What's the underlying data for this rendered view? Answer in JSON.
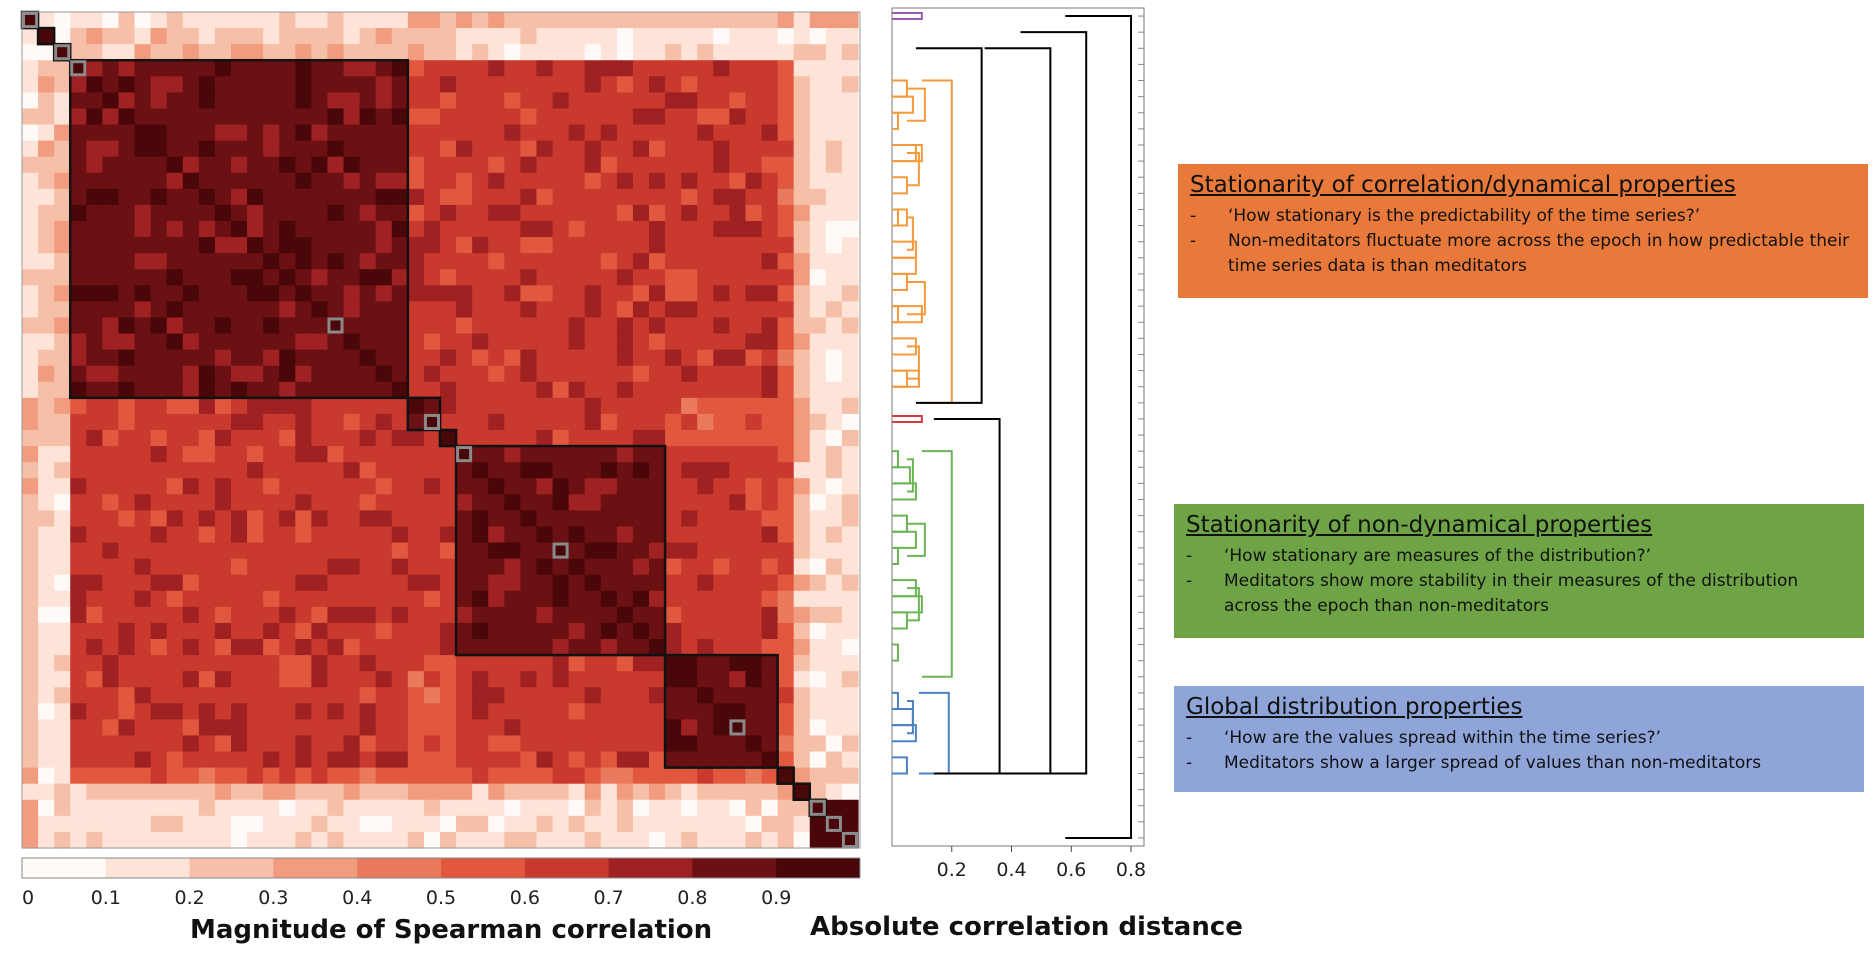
{
  "chart_data": [
    {
      "type": "heatmap",
      "title": "",
      "n_features": 52,
      "colorbar": {
        "label": "Magnitude of Spearman correlation",
        "ticks": [
          "0",
          "0.1",
          "0.2",
          "0.3",
          "0.4",
          "0.5",
          "0.6",
          "0.7",
          "0.8",
          "0.9"
        ],
        "range": [
          0,
          1
        ],
        "colors": [
          "#fffaf7",
          "#fde3d8",
          "#f6c0a8",
          "#f19c7e",
          "#e97a5d",
          "#e2583f",
          "#c9392e",
          "#9f2122",
          "#6b1013",
          "#4a0709"
        ]
      },
      "clusters": [
        {
          "start": 0,
          "end": 0
        },
        {
          "start": 1,
          "end": 1
        },
        {
          "start": 2,
          "end": 2
        },
        {
          "start": 3,
          "end": 23
        },
        {
          "start": 24,
          "end": 25
        },
        {
          "start": 26,
          "end": 26
        },
        {
          "start": 27,
          "end": 39
        },
        {
          "start": 40,
          "end": 46
        },
        {
          "start": 47,
          "end": 47
        },
        {
          "start": 48,
          "end": 48
        },
        {
          "start": 49,
          "end": 49
        }
      ],
      "block_levels": [
        [
          9,
          1,
          1,
          1,
          3,
          2,
          2,
          2,
          3,
          1,
          3
        ],
        [
          1,
          9,
          1,
          2,
          2,
          2,
          1,
          1,
          1,
          1,
          1
        ],
        [
          1,
          1,
          9,
          2,
          2,
          2,
          1,
          1,
          1,
          1,
          1
        ],
        [
          1,
          2,
          2,
          8,
          6,
          6,
          6,
          6,
          5,
          2,
          1
        ],
        [
          3,
          2,
          2,
          6,
          8,
          6,
          6,
          5,
          5,
          3,
          1
        ],
        [
          2,
          2,
          2,
          6,
          6,
          9,
          6,
          5,
          5,
          2,
          1
        ],
        [
          2,
          1,
          1,
          6,
          6,
          6,
          8,
          6,
          5,
          2,
          1
        ],
        [
          2,
          1,
          1,
          6,
          5,
          5,
          6,
          8,
          5,
          2,
          1
        ],
        [
          3,
          1,
          1,
          5,
          5,
          5,
          5,
          5,
          9,
          3,
          2
        ],
        [
          1,
          1,
          1,
          2,
          3,
          2,
          2,
          2,
          3,
          9,
          1
        ],
        [
          3,
          1,
          1,
          1,
          1,
          1,
          1,
          1,
          2,
          1,
          9
        ]
      ],
      "highlighted_features": [
        0,
        2,
        3,
        19,
        25,
        27,
        33,
        44,
        49,
        50,
        51
      ]
    },
    {
      "type": "dendrogram",
      "xlabel": "Absolute correlation distance",
      "xticks": [
        0.2,
        0.4,
        0.6,
        0.8
      ],
      "xlim": [
        0,
        0.83
      ],
      "n_leaves": 52,
      "clusters": [
        {
          "name": "",
          "color": "#9b59b6",
          "leaf_range": [
            0,
            0
          ]
        },
        {
          "name": "",
          "color": "#f39a3c",
          "leaf_range": [
            4,
            24
          ]
        },
        {
          "name": "",
          "color": "#d43d3d",
          "leaf_range": [
            25,
            25
          ]
        },
        {
          "name": "",
          "color": "#6cb556",
          "leaf_range": [
            27,
            41
          ]
        },
        {
          "name": "",
          "color": "#4d82c2",
          "leaf_range": [
            42,
            47
          ]
        }
      ],
      "links": [
        {
          "leaves": [
            12,
            13
          ],
          "height": 0.05,
          "color": "#f39a3c"
        },
        {
          "leaves": [
            15,
            16
          ],
          "height": 0.08,
          "color": "#f39a3c"
        },
        {
          "leaves": [
            18,
            19
          ],
          "height": 0.1,
          "color": "#f39a3c"
        },
        {
          "leaves": [
            5,
            6
          ],
          "height": 0.07,
          "color": "#f39a3c"
        },
        {
          "leaves": [
            8,
            9
          ],
          "height": 0.1,
          "color": "#f39a3c"
        },
        {
          "leaves": [
            22,
            23
          ],
          "height": 0.09,
          "color": "#f39a3c"
        },
        {
          "leaves": [
            4,
            24
          ],
          "height": 0.2,
          "color": "#f39a3c"
        },
        {
          "leaves": [
            25,
            25
          ],
          "height": 0.1,
          "color": "#d43d3d"
        },
        {
          "leaves": [
            28,
            29
          ],
          "height": 0.06,
          "color": "#6cb556"
        },
        {
          "leaves": [
            32,
            33
          ],
          "height": 0.08,
          "color": "#6cb556"
        },
        {
          "leaves": [
            36,
            37
          ],
          "height": 0.1,
          "color": "#6cb556"
        },
        {
          "leaves": [
            27,
            41
          ],
          "height": 0.2,
          "color": "#6cb556"
        },
        {
          "leaves": [
            43,
            44
          ],
          "height": 0.07,
          "color": "#4d82c2"
        },
        {
          "leaves": [
            42,
            47
          ],
          "height": 0.19,
          "color": "#4d82c2"
        },
        {
          "leaves": [
            2,
            24
          ],
          "height": 0.3,
          "color": "#000000"
        },
        {
          "leaves": [
            25,
            47
          ],
          "height": 0.36,
          "color": "#000000"
        },
        {
          "leaves": [
            2,
            47
          ],
          "height": 0.53,
          "color": "#000000"
        },
        {
          "leaves": [
            1,
            47
          ],
          "height": 0.65,
          "color": "#000000"
        },
        {
          "leaves": [
            0,
            51
          ],
          "height": 0.8,
          "color": "#000000"
        }
      ]
    }
  ],
  "boxes": [
    {
      "title": "Stationarity of correlation/dynamical properties",
      "color": "#e8793a",
      "items": [
        "‘How stationary is the predictability of the time series?’",
        "Non-meditators fluctuate more across the epoch in how predictable their time series data is than meditators"
      ]
    },
    {
      "title": "Stationarity of non-dynamical properties",
      "color": "#6ea446",
      "items": [
        "‘How stationary are measures of the distribution?’",
        "Meditators show more stability in their measures of the distribution across the epoch than non-meditators"
      ]
    },
    {
      "title": "Global distribution properties",
      "color": "#8fa5d9",
      "items": [
        "‘How are the values spread within the time series?’",
        "Meditators show a larger spread of values than non-meditators"
      ]
    }
  ],
  "dash": "-"
}
